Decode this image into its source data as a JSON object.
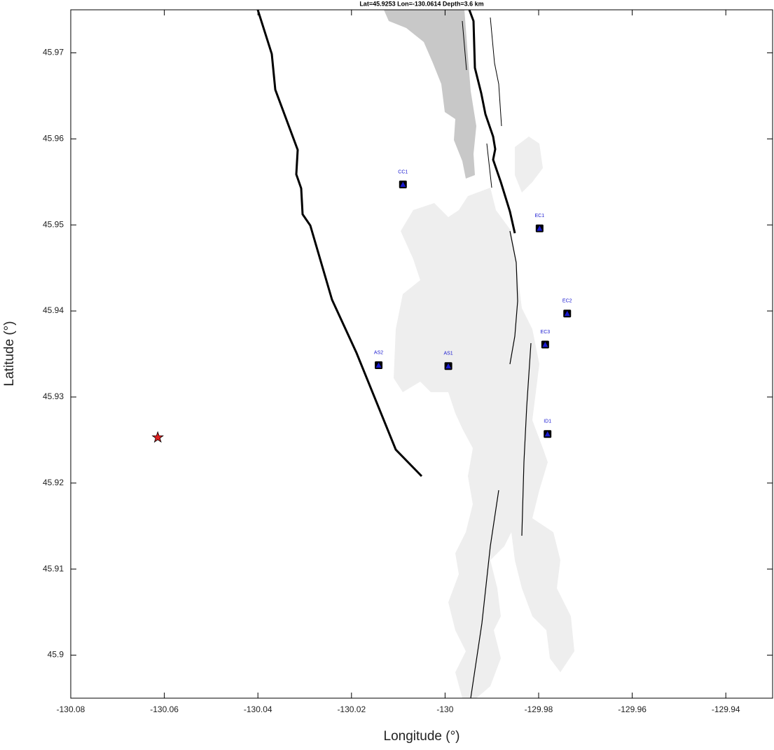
{
  "chart_data": {
    "type": "scatter",
    "title": "Lat=45.9253  Lon=-130.0614  Depth=3.6 km",
    "x_label": "Longitude (°)",
    "y_label": "Latitude (°)",
    "xlim": [
      -130.08,
      -129.93
    ],
    "ylim": [
      45.895,
      45.975
    ],
    "xticks": [
      -130.08,
      -130.06,
      -130.04,
      -130.02,
      -130,
      -129.98,
      -129.96,
      -129.94
    ],
    "yticks": [
      45.9,
      45.91,
      45.92,
      45.93,
      45.94,
      45.95,
      45.96,
      45.97
    ],
    "stations": {
      "labels": [
        "CC1",
        "EC1",
        "EC2",
        "EC3",
        "AS2",
        "AS1",
        "ID1"
      ],
      "x": [
        -130.009,
        -129.9798,
        -129.9739,
        -129.9786,
        -130.0142,
        -129.9993,
        -129.9781
      ],
      "y": [
        45.9547,
        45.9496,
        45.9397,
        45.9361,
        45.9337,
        45.9336,
        45.9257
      ],
      "color": "#1a1ad0"
    },
    "event": {
      "x": -130.0614,
      "y": 45.9253,
      "color": "#e02020"
    }
  }
}
